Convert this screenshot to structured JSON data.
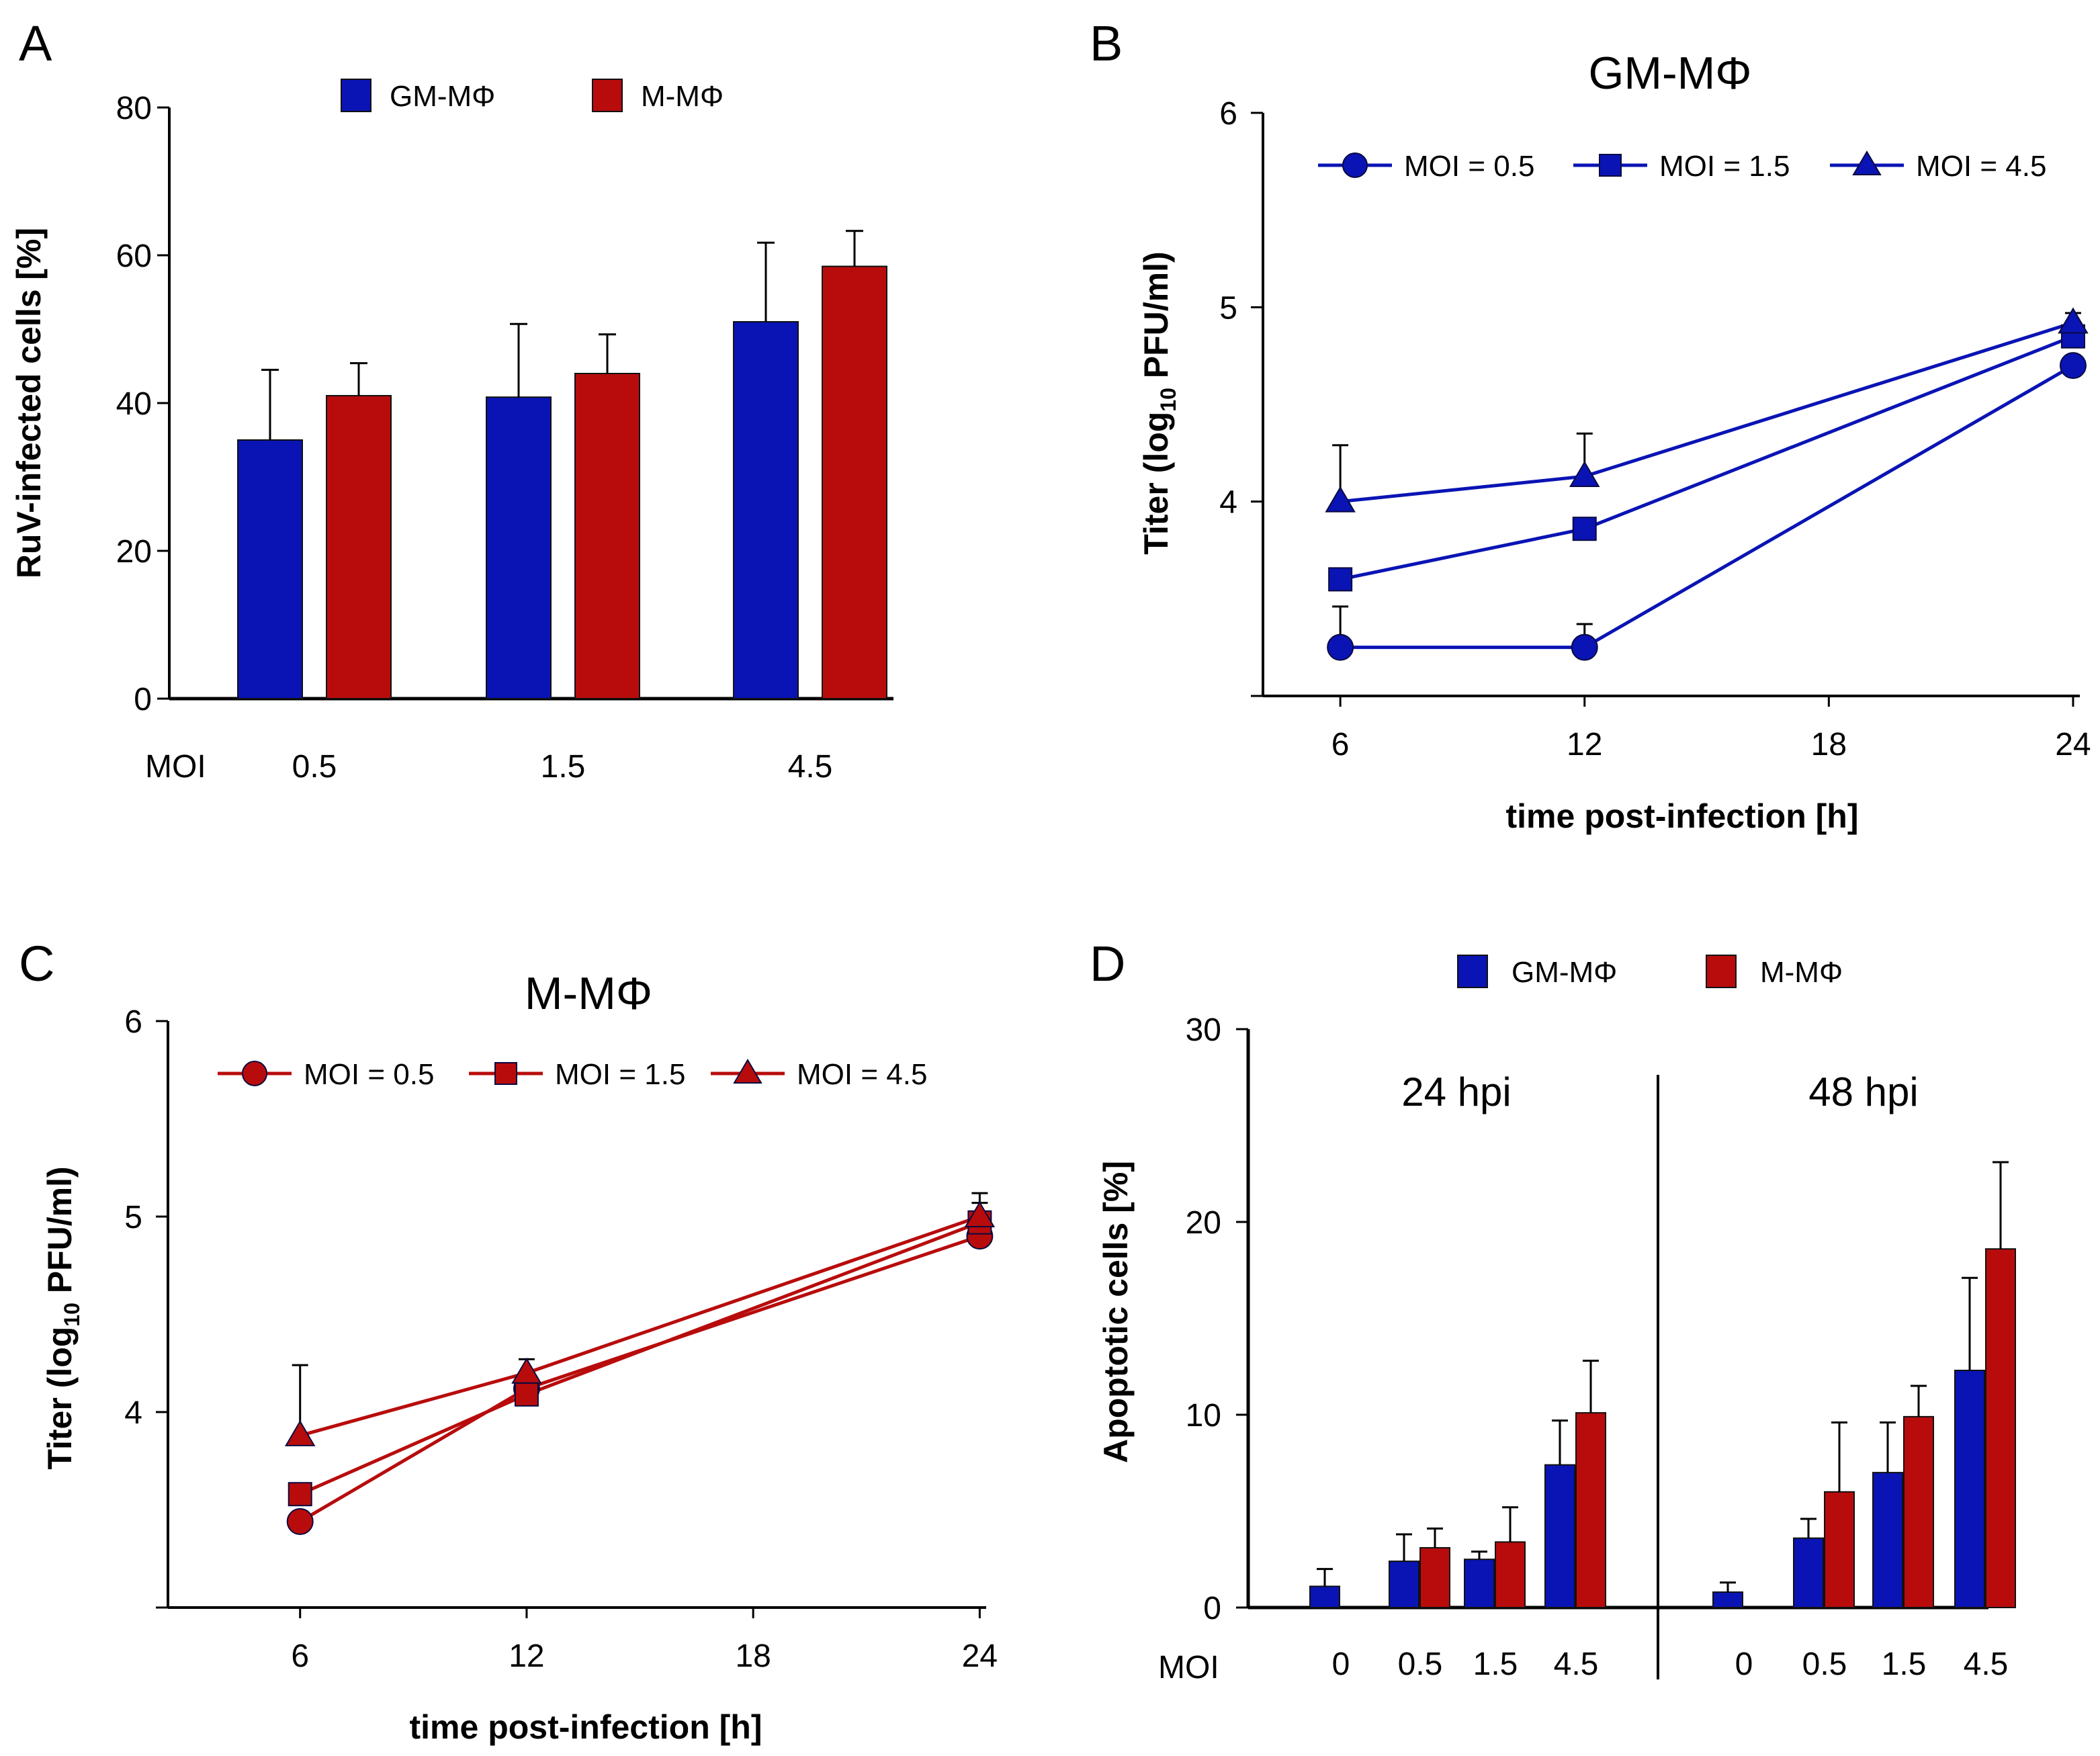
{
  "chart_data": [
    {
      "panel": "A",
      "type": "bar",
      "title": "",
      "xlabel": "MOI",
      "ylabel": "RuV-infected cells [%]",
      "ylim": [
        0,
        80
      ],
      "yticks": [
        0,
        20,
        40,
        60,
        80
      ],
      "categories": [
        "0.5",
        "1.5",
        "4.5"
      ],
      "series": [
        {
          "name": "GM-MΦ",
          "color": "#0a14b4",
          "values": [
            35,
            40.8,
            51
          ],
          "errors": [
            9.5,
            9.9,
            10.7
          ]
        },
        {
          "name": "M-MΦ",
          "color": "#b80c0c",
          "values": [
            41,
            44,
            58.5
          ],
          "errors": [
            4.4,
            5.3,
            4.8
          ]
        }
      ],
      "legend": "top"
    },
    {
      "panel": "B",
      "type": "line",
      "title": "GM-MΦ",
      "xlabel": "time post-infection [h]",
      "ylabel_parts": [
        "Titer (log",
        "10",
        " PFU/ml)"
      ],
      "xlim": [
        4.1,
        24.1
      ],
      "ylim": [
        3,
        6
      ],
      "xticks": [
        6,
        12,
        18,
        24
      ],
      "yticks": [
        4,
        5,
        6
      ],
      "x": [
        6,
        12,
        24
      ],
      "color": "#0a14b4",
      "series": [
        {
          "name": "MOI = 0.5",
          "marker": "circle",
          "values": [
            3.25,
            3.25,
            4.7
          ],
          "errors": [
            0.21,
            0.12,
            0
          ]
        },
        {
          "name": "MOI = 1.5",
          "marker": "square",
          "values": [
            3.6,
            3.86,
            4.85
          ],
          "errors": [
            0,
            0,
            0.03
          ]
        },
        {
          "name": "MOI = 4.5",
          "marker": "triangle",
          "values": [
            4.0,
            4.13,
            4.92
          ],
          "errors": [
            0.29,
            0.22,
            0.05
          ]
        }
      ],
      "legend": "top"
    },
    {
      "panel": "C",
      "type": "line",
      "title": "M-MΦ",
      "xlabel": "time post-infection [h]",
      "ylabel_parts": [
        "Titer (log",
        "10",
        " PFU/ml)"
      ],
      "xlim": [
        2.5,
        24.1
      ],
      "ylim": [
        3,
        6
      ],
      "xticks": [
        6,
        12,
        18,
        24
      ],
      "yticks": [
        4,
        5,
        6
      ],
      "x": [
        6,
        12,
        24
      ],
      "color": "#b80c0c",
      "series": [
        {
          "name": "MOI = 0.5",
          "marker": "circle",
          "values": [
            3.44,
            4.12,
            4.9
          ],
          "errors": [
            0,
            0,
            0
          ]
        },
        {
          "name": "MOI = 1.5",
          "marker": "square",
          "values": [
            3.58,
            4.09,
            4.97
          ],
          "errors": [
            0,
            0,
            0.1
          ]
        },
        {
          "name": "MOI = 4.5",
          "marker": "triangle",
          "values": [
            3.88,
            4.2,
            5.0
          ],
          "errors": [
            0.36,
            0.07,
            0.12
          ]
        }
      ],
      "legend": "top"
    },
    {
      "panel": "D",
      "type": "bar",
      "title": "",
      "xlabel": "MOI",
      "ylabel": "Apoptotic cells [%]",
      "ylim": [
        0,
        30
      ],
      "yticks": [
        0,
        10,
        20,
        30
      ],
      "groups": [
        {
          "label": "24 hpi",
          "categories": [
            "0",
            "0.5",
            "1.5",
            "4.5"
          ],
          "series": [
            {
              "name": "GM-MΦ",
              "values": [
                1.1,
                2.4,
                2.5,
                7.4
              ],
              "errors": [
                0.9,
                1.4,
                0.4,
                2.3
              ]
            },
            {
              "name": "M-MΦ",
              "values": [
                null,
                3.1,
                3.4,
                10.1
              ],
              "errors": [
                null,
                1.0,
                1.8,
                2.7
              ]
            }
          ]
        },
        {
          "label": "48 hpi",
          "categories": [
            "0",
            "0.5",
            "1.5",
            "4.5"
          ],
          "series": [
            {
              "name": "GM-MΦ",
              "values": [
                0.8,
                3.6,
                7.0,
                12.3
              ],
              "errors": [
                0.5,
                1.0,
                2.6,
                4.8
              ]
            },
            {
              "name": "M-MΦ",
              "values": [
                null,
                6.0,
                9.9,
                18.6
              ],
              "errors": [
                null,
                3.6,
                1.6,
                4.5
              ]
            }
          ]
        }
      ],
      "colors": {
        "GM-MΦ": "#0a14b4",
        "M-MΦ": "#b80c0c"
      },
      "legend": "top"
    }
  ]
}
